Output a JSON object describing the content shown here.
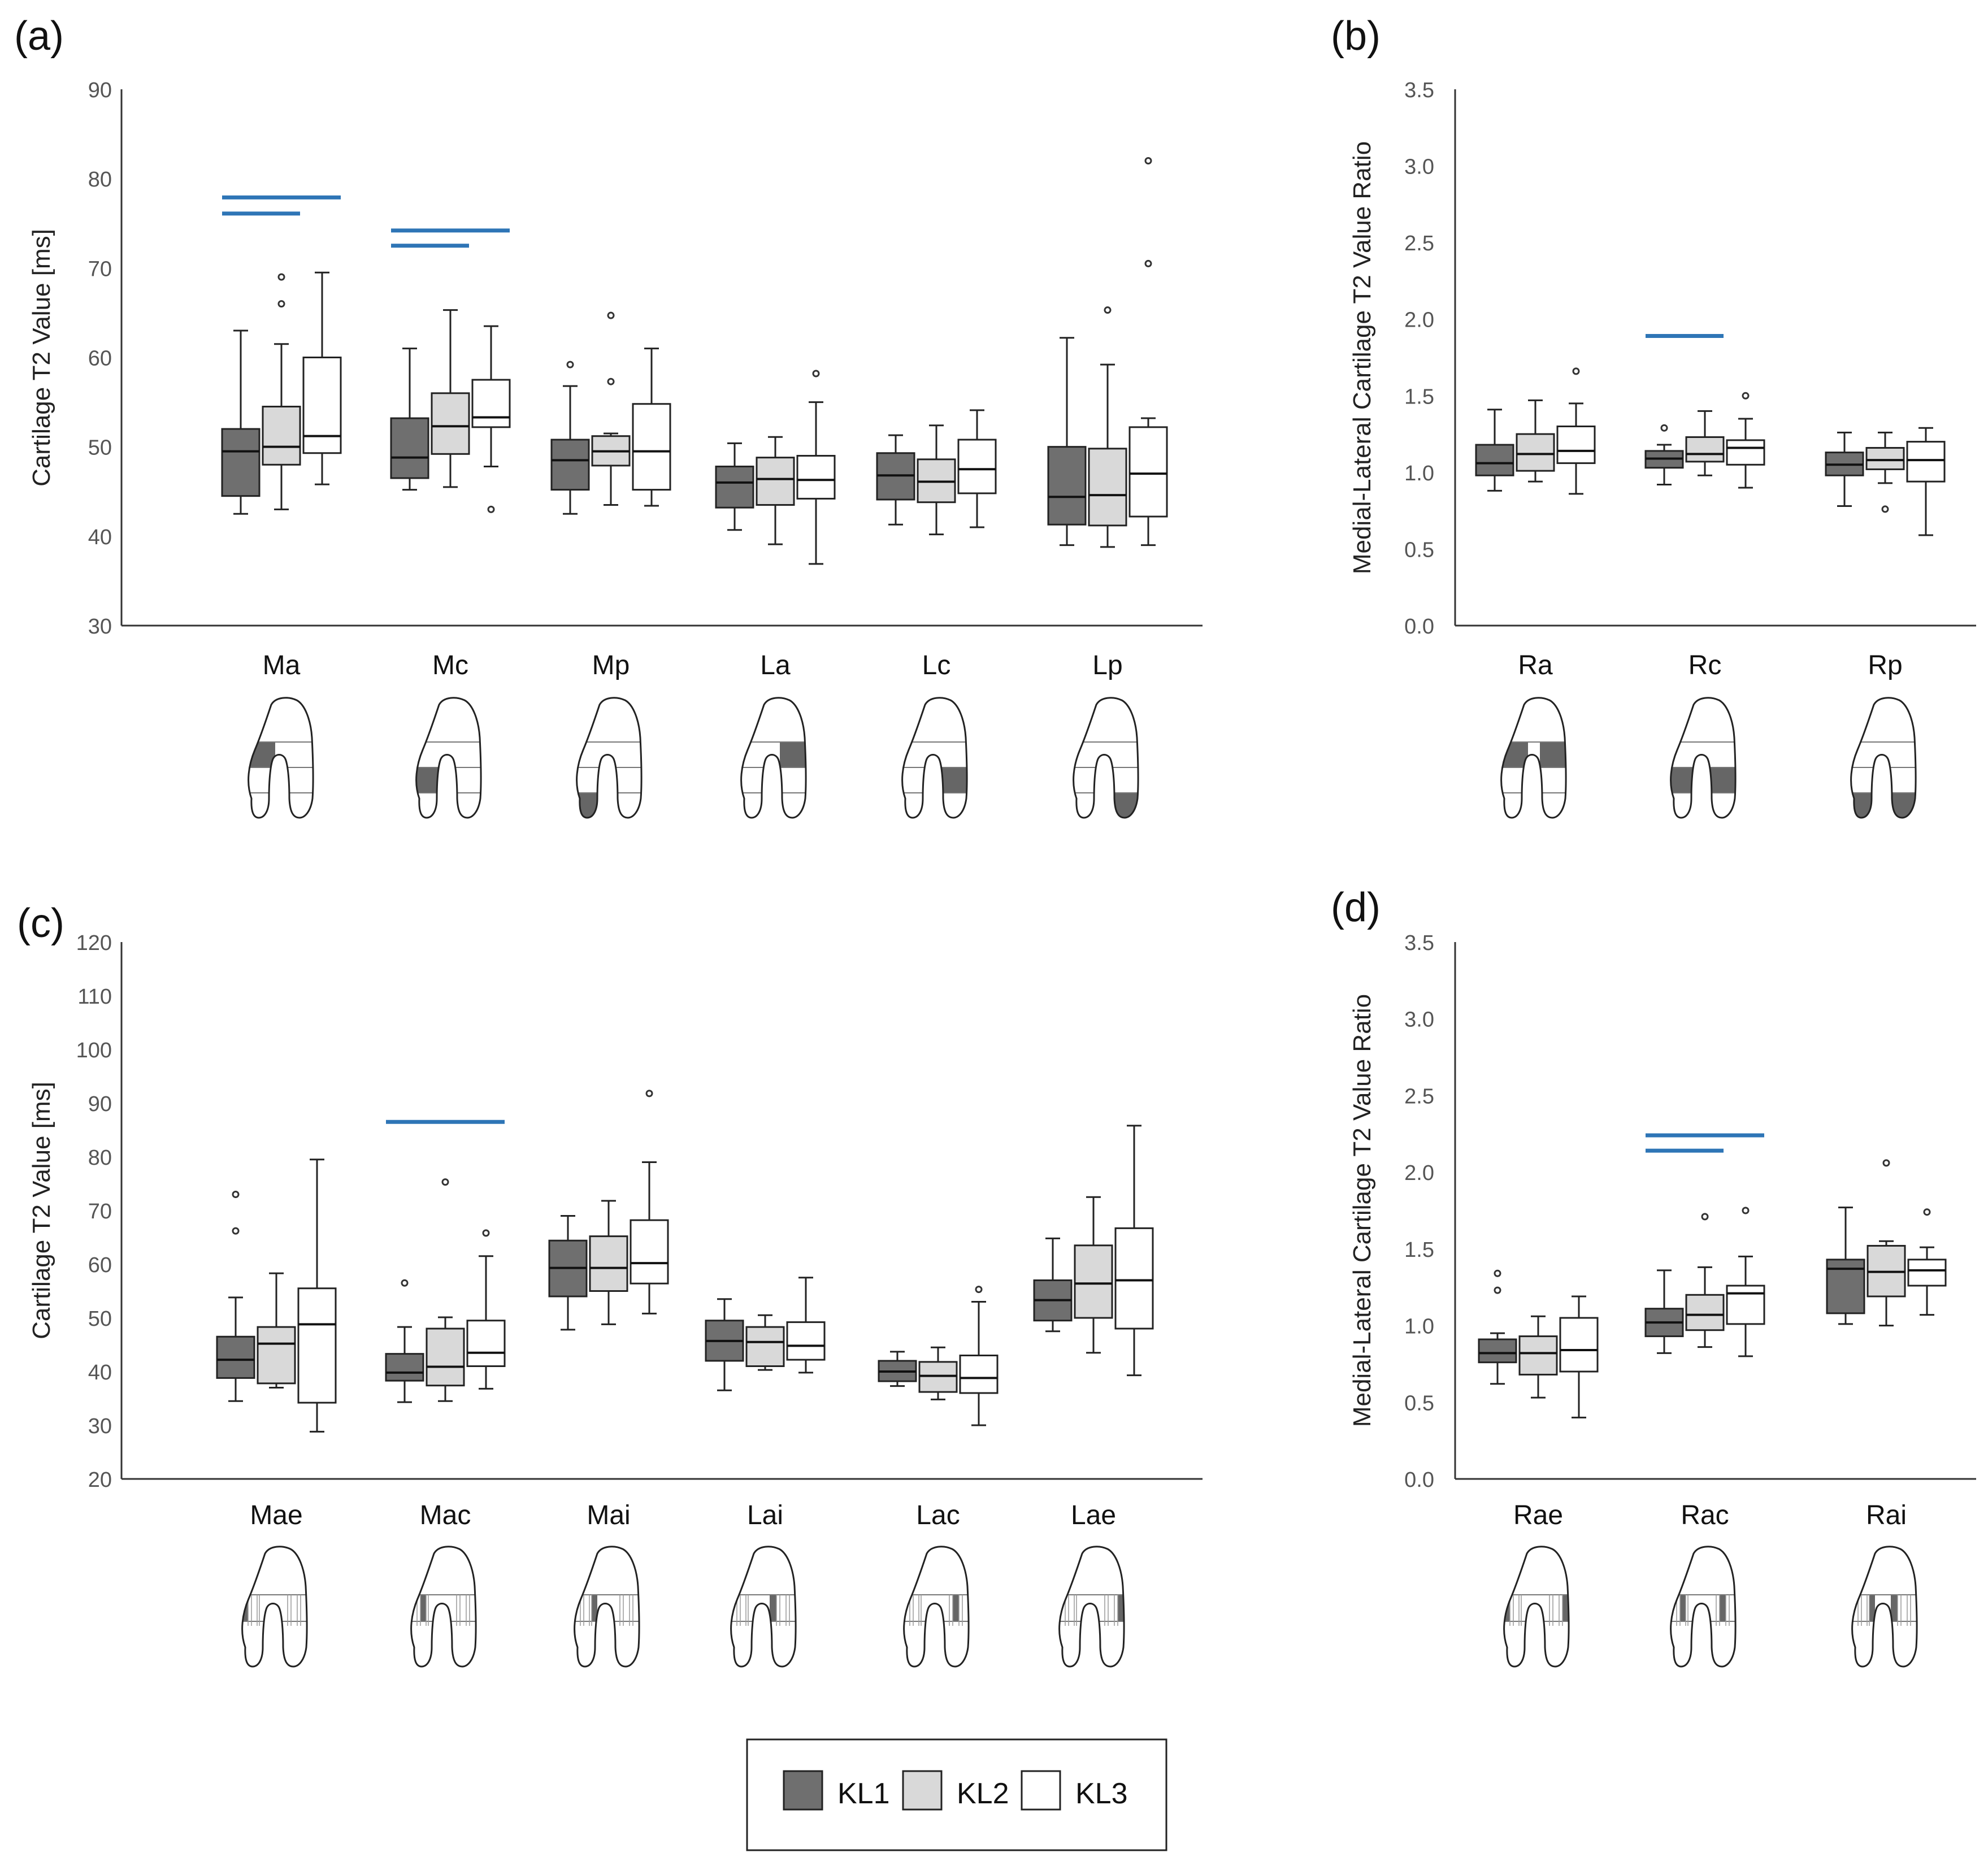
{
  "colors": {
    "kl1": "#6f6f6f",
    "kl2": "#d9d9d9",
    "kl3": "#ffffff",
    "significance": "#2e75b6",
    "axis": "#333333",
    "tick_text": "#555555"
  },
  "legend": {
    "items": [
      "KL1",
      "KL2",
      "KL3"
    ]
  },
  "chart_data": [
    {
      "panel": "(a)",
      "type": "box",
      "ylabel": "Cartilage T2 Value [ms]",
      "ylim": [
        30,
        90
      ],
      "yticks": [
        30,
        40,
        50,
        60,
        70,
        80,
        90
      ],
      "ytick_labels": [
        "30",
        "40",
        "50",
        "60",
        "70",
        "80",
        "90"
      ],
      "categories": [
        "Ma",
        "Mc",
        "Mp",
        "La",
        "Lc",
        "Lp"
      ],
      "series_names": [
        "KL1",
        "KL2",
        "KL3"
      ],
      "boxes": [
        [
          [
            42.5,
            44.5,
            49.5,
            52,
            63,
            []
          ],
          [
            43,
            48,
            50,
            54.5,
            61.5,
            [
              66,
              69
            ]
          ],
          [
            45.8,
            49.3,
            51.2,
            60,
            69.5,
            []
          ]
        ],
        [
          [
            45.2,
            46.5,
            48.8,
            53.2,
            61,
            []
          ],
          [
            45.5,
            49.2,
            52.3,
            56,
            65.3,
            []
          ],
          [
            47.8,
            52.2,
            53.3,
            57.5,
            63.5,
            [
              43
            ]
          ]
        ],
        [
          [
            42.5,
            45.2,
            48.5,
            50.8,
            56.8,
            [
              59.2
            ]
          ],
          [
            43.5,
            47.9,
            49.5,
            51.2,
            51.5,
            [
              57.3,
              64.7
            ]
          ],
          [
            43.4,
            45.2,
            49.5,
            54.8,
            61,
            []
          ]
        ],
        [
          [
            40.7,
            43.2,
            46,
            47.8,
            50.4,
            []
          ],
          [
            39.1,
            43.5,
            46.4,
            48.8,
            51.1,
            []
          ],
          [
            36.9,
            44.2,
            46.3,
            49,
            55,
            [
              58.2
            ]
          ]
        ],
        [
          [
            41.3,
            44.1,
            46.8,
            49.3,
            51.3,
            []
          ],
          [
            40.2,
            43.8,
            46.1,
            48.6,
            52.4,
            []
          ],
          [
            41,
            44.8,
            47.5,
            50.8,
            54.1,
            []
          ]
        ],
        [
          [
            39,
            41.3,
            44.4,
            50,
            62.2,
            []
          ],
          [
            38.8,
            41.2,
            44.6,
            49.8,
            59.2,
            [
              65.3
            ]
          ],
          [
            39,
            42.2,
            47,
            52.2,
            53.2,
            [
              70.5,
              82
            ]
          ]
        ]
      ],
      "significance_bars": [
        {
          "category": "Ma",
          "from": "KL1",
          "to": "KL2",
          "y": 76.1
        },
        {
          "category": "Ma",
          "from": "KL1",
          "to": "KL3",
          "y": 77.9
        },
        {
          "category": "Mc",
          "from": "KL1",
          "to": "KL2",
          "y": 72.5
        },
        {
          "category": "Mc",
          "from": "KL1",
          "to": "KL3",
          "y": 74.2
        }
      ]
    },
    {
      "panel": "(b)",
      "type": "box",
      "ylabel": "Medial-Lateral Cartilage T2 Value Ratio",
      "ylim": [
        0,
        3.5
      ],
      "yticks": [
        0,
        0.5,
        1,
        1.5,
        2,
        2.5,
        3,
        3.5
      ],
      "ytick_labels": [
        "0.0",
        "0.5",
        "1.0",
        "1.5",
        "2.0",
        "2.5",
        "3.0",
        "3.5"
      ],
      "categories": [
        "Ra",
        "Rc",
        "Rp"
      ],
      "series_names": [
        "KL1",
        "KL2",
        "KL3"
      ],
      "boxes": [
        [
          [
            0.88,
            0.98,
            1.06,
            1.18,
            1.41,
            []
          ],
          [
            0.94,
            1.01,
            1.12,
            1.25,
            1.47,
            []
          ],
          [
            0.86,
            1.06,
            1.14,
            1.3,
            1.45,
            [
              1.66
            ]
          ]
        ],
        [
          [
            0.92,
            1.03,
            1.09,
            1.14,
            1.18,
            [
              1.29
            ]
          ],
          [
            0.98,
            1.07,
            1.12,
            1.23,
            1.4,
            []
          ],
          [
            0.9,
            1.05,
            1.16,
            1.21,
            1.35,
            [
              1.5
            ]
          ]
        ],
        [
          [
            0.78,
            0.98,
            1.05,
            1.13,
            1.26,
            []
          ],
          [
            0.93,
            1.02,
            1.08,
            1.16,
            1.26,
            [
              0.76
            ]
          ],
          [
            0.59,
            0.94,
            1.08,
            1.2,
            1.29,
            []
          ]
        ]
      ],
      "significance_bars": [
        {
          "category": "Rc",
          "from": "KL1",
          "to": "KL2",
          "y": 1.89
        }
      ]
    },
    {
      "panel": "(c)",
      "type": "box",
      "ylabel": "Cartilage T2 Value [ms]",
      "ylim": [
        20,
        120
      ],
      "yticks": [
        20,
        30,
        40,
        50,
        60,
        70,
        80,
        90,
        100,
        110,
        120
      ],
      "ytick_labels": [
        "20",
        "30",
        "40",
        "50",
        "60",
        "70",
        "80",
        "90",
        "100",
        "110",
        "120"
      ],
      "categories": [
        "Mae",
        "Mac",
        "Mai",
        "Lai",
        "Lac",
        "Lae"
      ],
      "series_names": [
        "KL1",
        "KL2",
        "KL3"
      ],
      "boxes": [
        [
          [
            34.5,
            38.8,
            42.2,
            46.5,
            53.8,
            [
              66.2,
              73
            ]
          ],
          [
            37,
            37.8,
            45.2,
            48.3,
            58.3,
            []
          ],
          [
            28.8,
            34.2,
            48.8,
            55.5,
            79.5,
            []
          ]
        ],
        [
          [
            34.3,
            38.3,
            39.8,
            43.3,
            48.3,
            [
              56.5
            ]
          ],
          [
            34.5,
            37.4,
            40.9,
            48,
            50.1,
            [
              75.3
            ]
          ],
          [
            36.8,
            41,
            43.5,
            49.5,
            61.5,
            [
              65.8
            ]
          ]
        ],
        [
          [
            47.8,
            54,
            59.3,
            64.4,
            69,
            []
          ],
          [
            48.8,
            55,
            59.3,
            65.2,
            71.8,
            []
          ],
          [
            50.8,
            56.4,
            60.2,
            68.2,
            79,
            [
              91.8
            ]
          ]
        ],
        [
          [
            36.5,
            42,
            45.7,
            49.5,
            53.5,
            []
          ],
          [
            40.3,
            41,
            45.5,
            48.3,
            50.5,
            []
          ],
          [
            39.8,
            42.2,
            44.8,
            49.2,
            57.5,
            []
          ]
        ],
        [
          [
            37.3,
            38.2,
            40,
            42,
            43.7,
            []
          ],
          [
            34.8,
            36.2,
            39.2,
            41.8,
            44.5,
            []
          ],
          [
            30,
            36,
            38.8,
            43,
            53,
            [
              55.3
            ]
          ]
        ],
        [
          [
            47.5,
            49.5,
            53.3,
            57,
            64.8,
            []
          ],
          [
            43.5,
            50,
            56.4,
            63.5,
            72.5,
            []
          ],
          [
            39.3,
            48,
            57,
            66.7,
            85.8,
            []
          ]
        ]
      ],
      "significance_bars": [
        {
          "category": "Mac",
          "from": "KL1",
          "to": "KL3",
          "y": 86.5
        }
      ]
    },
    {
      "panel": "(d)",
      "type": "box",
      "ylabel": "Medial-Lateral Cartilage T2 Value Ratio",
      "ylim": [
        0,
        3.5
      ],
      "yticks": [
        0,
        0.5,
        1,
        1.5,
        2,
        2.5,
        3,
        3.5
      ],
      "ytick_labels": [
        "0.0",
        "0.5",
        "1.0",
        "1.5",
        "2.0",
        "2.5",
        "3.0",
        "3.5"
      ],
      "categories": [
        "Rae",
        "Rac",
        "Rai"
      ],
      "series_names": [
        "KL1",
        "KL2",
        "KL3"
      ],
      "boxes": [
        [
          [
            0.62,
            0.76,
            0.82,
            0.91,
            0.95,
            [
              1.23,
              1.34
            ]
          ],
          [
            0.53,
            0.68,
            0.82,
            0.93,
            1.06,
            []
          ],
          [
            0.4,
            0.7,
            0.84,
            1.05,
            1.19,
            []
          ]
        ],
        [
          [
            0.82,
            0.93,
            1.02,
            1.11,
            1.36,
            []
          ],
          [
            0.86,
            0.97,
            1.07,
            1.2,
            1.38,
            [
              1.71
            ]
          ],
          [
            0.8,
            1.01,
            1.21,
            1.26,
            1.45,
            [
              1.75
            ]
          ]
        ],
        [
          [
            1.01,
            1.08,
            1.37,
            1.43,
            1.77,
            []
          ],
          [
            1.0,
            1.19,
            1.35,
            1.52,
            1.55,
            [
              2.06
            ]
          ],
          [
            1.07,
            1.26,
            1.36,
            1.43,
            1.51,
            [
              1.74
            ]
          ]
        ]
      ],
      "significance_bars": [
        {
          "category": "Rac",
          "from": "KL1",
          "to": "KL2",
          "y": 2.14
        },
        {
          "category": "Rac",
          "from": "KL1",
          "to": "KL3",
          "y": 2.24
        }
      ]
    }
  ],
  "knee_diagrams": [
    {
      "panel": "(a)",
      "kind": "cond",
      "regions": [
        [
          "MA"
        ],
        [
          "MC"
        ],
        [
          "MP"
        ],
        [
          "LA"
        ],
        [
          "LC"
        ],
        [
          "LP"
        ]
      ]
    },
    {
      "panel": "(b)",
      "kind": "cond",
      "regions": [
        [
          "MA",
          "LA"
        ],
        [
          "MC",
          "LC"
        ],
        [
          "MP",
          "LP"
        ]
      ]
    },
    {
      "panel": "(c)",
      "kind": "troch",
      "regions": [
        [
          "MAE"
        ],
        [
          "MAC"
        ],
        [
          "MAI"
        ],
        [
          "LAI"
        ],
        [
          "LAC"
        ],
        [
          "LAE"
        ]
      ]
    },
    {
      "panel": "(d)",
      "kind": "troch",
      "regions": [
        [
          "MAE",
          "LAE"
        ],
        [
          "MAC",
          "LAC"
        ],
        [
          "MAI",
          "LAI"
        ]
      ]
    }
  ]
}
